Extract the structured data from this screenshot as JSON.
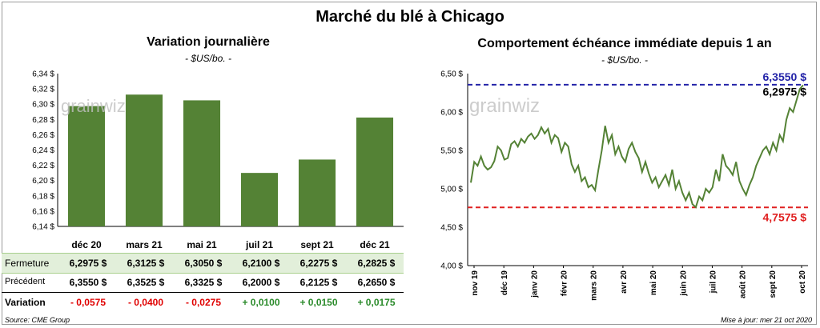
{
  "title": "Marché du blé à Chicago",
  "left_chart": {
    "title": "Variation journalière",
    "unit": "- $US/bo. -",
    "watermark": "grainwiz"
  },
  "right_chart": {
    "title": "Comportement  échéance immédiate depuis 1 an",
    "unit": "- $US/bo. -",
    "watermark": "grainwiz",
    "high_label": "6,3550 $",
    "low_label": "4,7575 $",
    "last_label": "6,2975 $"
  },
  "table": {
    "rows": [
      {
        "label": "Fermeture",
        "values": [
          "6,2975  $",
          "6,3125  $",
          "6,3050  $",
          "6,2100  $",
          "6,2275  $",
          "6,2825  $"
        ]
      },
      {
        "label": "Précédent",
        "values": [
          "6,3550  $",
          "6,3525  $",
          "6,3325  $",
          "6,2000  $",
          "6,2125  $",
          "6,2650  $"
        ]
      },
      {
        "label": "Variation",
        "values": [
          "- 0,0575",
          "- 0,0400",
          "- 0,0275",
          "+ 0,0100",
          "+ 0,0150",
          "+ 0,0175"
        ]
      }
    ]
  },
  "footer": {
    "source": "Source: CME Group",
    "update": "Mise à jour: mer 21 oct 2020"
  },
  "colors": {
    "bar": "#548235",
    "line": "#548235",
    "high": "#2323a8",
    "low": "#e02020"
  },
  "chart_data": [
    {
      "type": "bar",
      "categories": [
        "déc 20",
        "mars 21",
        "mai 21",
        "juil 21",
        "sept 21",
        "déc 21"
      ],
      "values": [
        6.2975,
        6.3125,
        6.305,
        6.21,
        6.2275,
        6.2825
      ],
      "ylim": [
        6.14,
        6.34
      ],
      "yticks": [
        "6,14 $",
        "6,16 $",
        "6,18 $",
        "6,20 $",
        "6,22 $",
        "6,24 $",
        "6,26 $",
        "6,28 $",
        "6,30 $",
        "6,32 $",
        "6,34 $"
      ],
      "title": "Variation journalière",
      "ylabel": "- $US/bo. -",
      "grid": false
    },
    {
      "type": "line",
      "title": "Comportement  échéance immédiate depuis 1 an",
      "ylabel": "- $US/bo. -",
      "ylim": [
        4.0,
        6.5
      ],
      "yticks": [
        "4,00 $",
        "4,50 $",
        "5,00 $",
        "5,50 $",
        "6,00 $",
        "6,50 $"
      ],
      "xticks": [
        "nov 19",
        "déc 19",
        "janv 20",
        "févr 20",
        "mars 20",
        "avr 20",
        "mai 20",
        "juin 20",
        "juil 20",
        "août 20",
        "sept 20",
        "oct 20"
      ],
      "series": [
        {
          "values": [
            5.08,
            5.35,
            5.3,
            5.42,
            5.3,
            5.25,
            5.28,
            5.36,
            5.55,
            5.5,
            5.38,
            5.4,
            5.58,
            5.62,
            5.55,
            5.65,
            5.6,
            5.68,
            5.72,
            5.65,
            5.7,
            5.8,
            5.72,
            5.78,
            5.6,
            5.7,
            5.66,
            5.48,
            5.6,
            5.55,
            5.32,
            5.22,
            5.3,
            5.1,
            5.15,
            5.02,
            5.05,
            4.98,
            5.25,
            5.5,
            5.82,
            5.6,
            5.7,
            5.45,
            5.55,
            5.42,
            5.35,
            5.52,
            5.6,
            5.48,
            5.4,
            5.22,
            5.35,
            5.2,
            5.08,
            5.15,
            5.02,
            5.1,
            5.18,
            5.05,
            5.25,
            5.0,
            5.1,
            4.95,
            4.85,
            4.95,
            4.8,
            4.76,
            4.9,
            4.85,
            5.0,
            4.95,
            5.02,
            5.25,
            5.1,
            5.45,
            5.3,
            5.25,
            5.18,
            5.35,
            5.1,
            5.0,
            4.92,
            5.05,
            5.15,
            5.3,
            5.4,
            5.5,
            5.55,
            5.45,
            5.6,
            5.5,
            5.7,
            5.62,
            5.9,
            6.05,
            6.0,
            6.15,
            6.3,
            6.35
          ]
        }
      ],
      "annotations": [
        {
          "label": "6,3550 $",
          "y": 6.355
        },
        {
          "label": "4,7575 $",
          "y": 4.7575
        },
        {
          "label": "6,2975 $",
          "y": 6.2975
        }
      ],
      "grid": false
    }
  ]
}
